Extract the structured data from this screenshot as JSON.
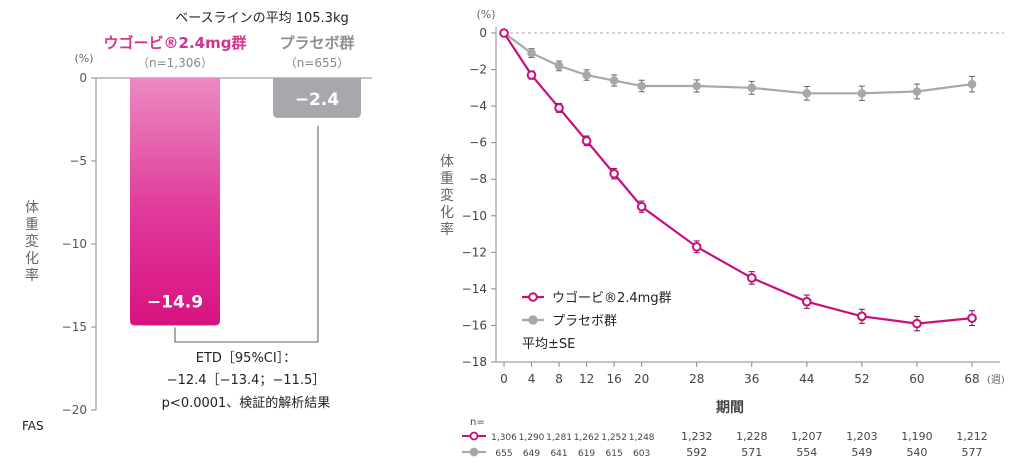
{
  "chart_data": [
    {
      "type": "bar",
      "header": "ベースラインの平均 105.3kg",
      "unit_label": "(%)",
      "ylabel": "体重変化率",
      "ylim": [
        -20,
        0
      ],
      "yticks": [
        0,
        -5,
        -10,
        -15,
        -20
      ],
      "ytick_labels": [
        "0",
        "−5",
        "−10",
        "−15",
        "−20"
      ],
      "categories": [
        "ウゴービ®2.4mg群",
        "プラセボ群"
      ],
      "n_labels": [
        "（n=1,306）",
        "（n=655）"
      ],
      "values": [
        -14.9,
        -2.4
      ],
      "value_labels": [
        "−14.9",
        "−2.4"
      ],
      "colors": [
        "#e0218a",
        "#a7a8ac"
      ],
      "etd": {
        "line1": "ETD［95%CI］：",
        "line2": "−12.4［−13.4；−11.5］",
        "line3": "p<0.0001、検証的解析結果"
      },
      "footnote": "FAS"
    },
    {
      "type": "line",
      "unit_label": "(%)",
      "ylabel": "体重変化率",
      "xlabel": "期間",
      "x_unit": "(週)",
      "ylim": [
        -18,
        0
      ],
      "xlim": [
        0,
        68
      ],
      "yticks": [
        0,
        -2,
        -4,
        -6,
        -8,
        -10,
        -12,
        -14,
        -16,
        -18
      ],
      "x": [
        0,
        4,
        8,
        12,
        16,
        20,
        28,
        36,
        44,
        52,
        60,
        68
      ],
      "series": [
        {
          "name": "ウゴービ®2.4mg群",
          "color": "#c8107b",
          "values": [
            0,
            -2.3,
            -4.1,
            -5.9,
            -7.7,
            -9.5,
            -11.7,
            -13.4,
            -14.7,
            -15.5,
            -15.9,
            -15.6
          ],
          "se": [
            0,
            0.06,
            0.08,
            0.1,
            0.12,
            0.14,
            0.16,
            0.18,
            0.2,
            0.22,
            0.23,
            0.24
          ],
          "n": [
            "1,306",
            "1,290",
            "1,281",
            "1,262",
            "1,252",
            "1,248",
            "1,232",
            "1,228",
            "1,207",
            "1,203",
            "1,190",
            "1,212"
          ]
        },
        {
          "name": "プラセボ群",
          "color": "#a7a8ac",
          "values": [
            0,
            -1.1,
            -1.8,
            -2.3,
            -2.6,
            -2.9,
            -2.9,
            -3.0,
            -3.3,
            -3.3,
            -3.2,
            -2.8
          ],
          "se": [
            0,
            0.08,
            0.1,
            0.12,
            0.14,
            0.15,
            0.17,
            0.19,
            0.21,
            0.23,
            0.24,
            0.26
          ],
          "n": [
            "655",
            "649",
            "641",
            "619",
            "615",
            "603",
            "592",
            "571",
            "554",
            "549",
            "540",
            "577"
          ]
        }
      ],
      "n_header": "n=",
      "se_note": "平均±SE"
    }
  ]
}
